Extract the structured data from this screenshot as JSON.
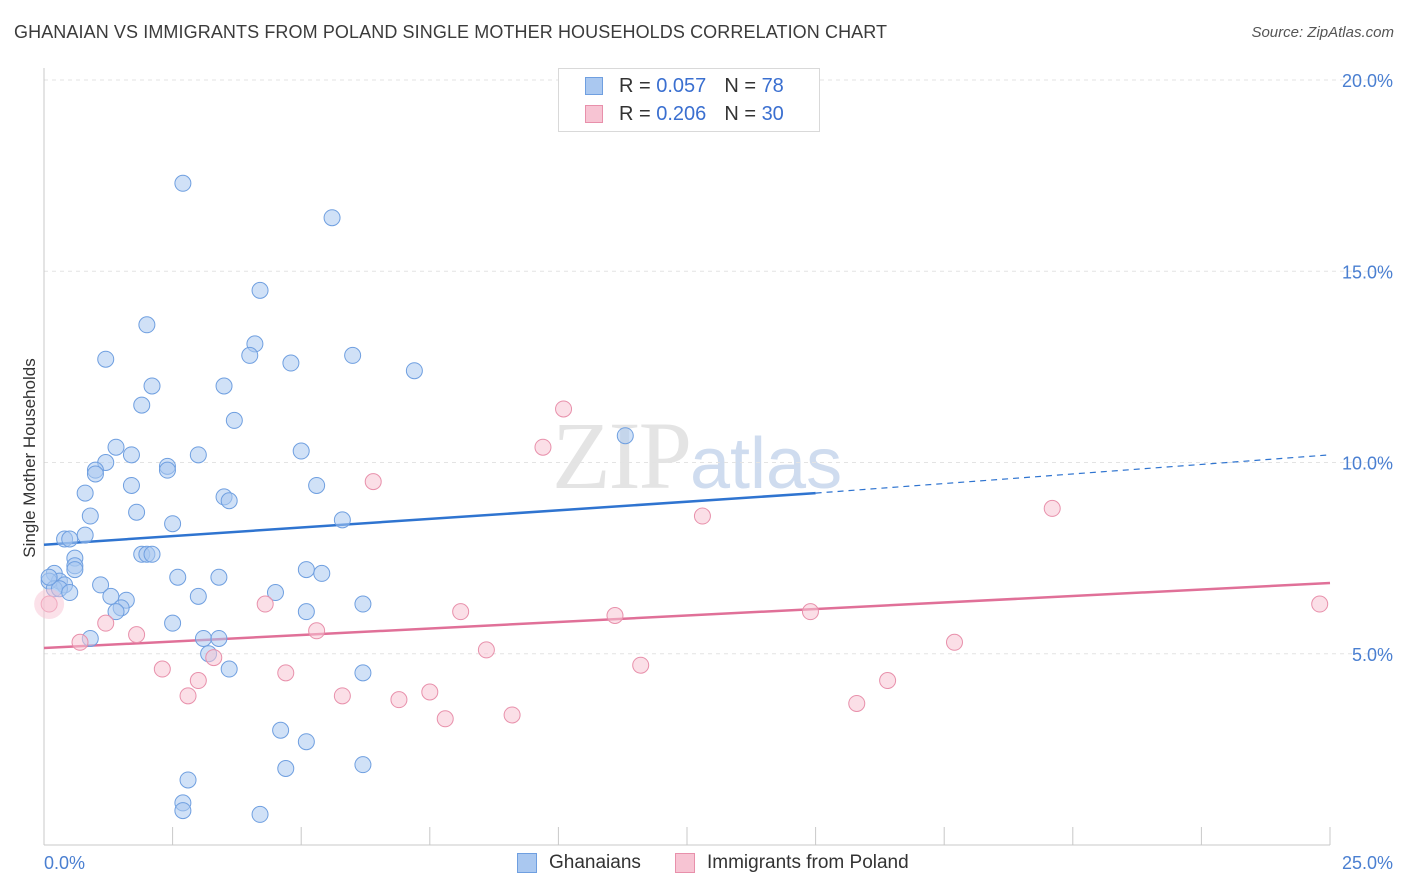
{
  "header": {
    "title": "GHANAIAN VS IMMIGRANTS FROM POLAND SINGLE MOTHER HOUSEHOLDS CORRELATION CHART",
    "source": "Source: ZipAtlas.com"
  },
  "watermark": {
    "zip": "ZIP",
    "atlas": "atlas"
  },
  "legend": {
    "rows": [
      {
        "r_label": "R = ",
        "r_value": "0.057",
        "n_label": "N = ",
        "n_value": "78",
        "color": "#aac8f0",
        "border": "#6f9fe0"
      },
      {
        "r_label": "R = ",
        "r_value": "0.206",
        "n_label": "N = ",
        "n_value": "30",
        "color": "#f7c4d3",
        "border": "#e890ab"
      }
    ]
  },
  "bottom_legend": {
    "ghanaians": "Ghanaians",
    "poland": "Immigrants from Poland"
  },
  "chart_data": {
    "type": "scatter",
    "title": "GHANAIAN VS IMMIGRANTS FROM POLAND SINGLE MOTHER HOUSEHOLDS CORRELATION CHART",
    "ylabel": "Single Mother Households",
    "xlim": [
      0,
      25
    ],
    "ylim": [
      0,
      20
    ],
    "x_tick_labels": [
      "0.0%",
      "25.0%"
    ],
    "y_ticks": [
      5,
      10,
      15,
      20
    ],
    "y_tick_labels": [
      "5.0%",
      "10.0%",
      "15.0%",
      "20.0%"
    ],
    "grid": true,
    "legend_position": "top-center",
    "series": [
      {
        "name": "Ghanaians",
        "color": "#6f9fe0",
        "fill": "#aac8f0",
        "trend": {
          "x0": 0.0,
          "y0": 7.85,
          "x1": 15.0,
          "y1": 9.2,
          "dash_x1": 25.0,
          "dash_y1": 10.2
        },
        "points": [
          [
            2.7,
            17.3
          ],
          [
            5.6,
            16.4
          ],
          [
            4.2,
            14.5
          ],
          [
            2.0,
            13.6
          ],
          [
            4.1,
            13.1
          ],
          [
            1.2,
            12.7
          ],
          [
            4.0,
            12.8
          ],
          [
            4.8,
            12.6
          ],
          [
            6.0,
            12.8
          ],
          [
            7.2,
            12.4
          ],
          [
            2.1,
            12.0
          ],
          [
            3.5,
            12.0
          ],
          [
            1.9,
            11.5
          ],
          [
            3.7,
            11.1
          ],
          [
            11.3,
            10.7
          ],
          [
            1.4,
            10.4
          ],
          [
            5.0,
            10.3
          ],
          [
            1.2,
            10.0
          ],
          [
            1.7,
            10.2
          ],
          [
            3.0,
            10.2
          ],
          [
            2.4,
            9.9
          ],
          [
            2.4,
            9.8
          ],
          [
            1.0,
            9.8
          ],
          [
            1.0,
            9.7
          ],
          [
            1.7,
            9.4
          ],
          [
            5.3,
            9.4
          ],
          [
            0.8,
            9.2
          ],
          [
            3.5,
            9.1
          ],
          [
            3.6,
            9.0
          ],
          [
            1.8,
            8.7
          ],
          [
            0.9,
            8.6
          ],
          [
            5.8,
            8.5
          ],
          [
            2.5,
            8.4
          ],
          [
            0.8,
            8.1
          ],
          [
            0.4,
            8.0
          ],
          [
            0.5,
            8.0
          ],
          [
            1.9,
            7.6
          ],
          [
            2.0,
            7.6
          ],
          [
            2.1,
            7.6
          ],
          [
            0.6,
            7.5
          ],
          [
            0.6,
            7.3
          ],
          [
            0.6,
            7.2
          ],
          [
            0.2,
            7.1
          ],
          [
            5.1,
            7.2
          ],
          [
            5.4,
            7.1
          ],
          [
            2.6,
            7.0
          ],
          [
            3.4,
            7.0
          ],
          [
            0.3,
            6.9
          ],
          [
            0.1,
            6.9
          ],
          [
            0.4,
            6.8
          ],
          [
            1.1,
            6.8
          ],
          [
            0.2,
            6.7
          ],
          [
            0.3,
            6.7
          ],
          [
            4.5,
            6.6
          ],
          [
            0.5,
            6.6
          ],
          [
            1.3,
            6.5
          ],
          [
            1.6,
            6.4
          ],
          [
            3.0,
            6.5
          ],
          [
            6.2,
            6.3
          ],
          [
            1.5,
            6.2
          ],
          [
            1.4,
            6.1
          ],
          [
            5.1,
            6.1
          ],
          [
            2.5,
            5.8
          ],
          [
            0.9,
            5.4
          ],
          [
            3.1,
            5.4
          ],
          [
            3.4,
            5.4
          ],
          [
            3.2,
            5.0
          ],
          [
            3.6,
            4.6
          ],
          [
            6.2,
            4.5
          ],
          [
            4.6,
            3.0
          ],
          [
            5.1,
            2.7
          ],
          [
            6.2,
            2.1
          ],
          [
            4.7,
            2.0
          ],
          [
            2.8,
            1.7
          ],
          [
            2.7,
            1.1
          ],
          [
            2.7,
            0.9
          ],
          [
            4.2,
            0.8
          ],
          [
            0.1,
            7.0
          ]
        ]
      },
      {
        "name": "Immigrants from Poland",
        "color": "#e890ab",
        "fill": "#f7c4d3",
        "trend": {
          "x0": 0.0,
          "y0": 5.15,
          "x1": 25.0,
          "y1": 6.85
        },
        "points": [
          [
            10.1,
            11.4
          ],
          [
            9.7,
            10.4
          ],
          [
            6.4,
            9.5
          ],
          [
            19.6,
            8.8
          ],
          [
            12.8,
            8.6
          ],
          [
            0.1,
            6.3
          ],
          [
            4.3,
            6.3
          ],
          [
            24.8,
            6.3
          ],
          [
            8.1,
            6.1
          ],
          [
            11.1,
            6.0
          ],
          [
            14.9,
            6.1
          ],
          [
            1.2,
            5.8
          ],
          [
            5.3,
            5.6
          ],
          [
            1.8,
            5.5
          ],
          [
            0.7,
            5.3
          ],
          [
            17.7,
            5.3
          ],
          [
            8.6,
            5.1
          ],
          [
            3.3,
            4.9
          ],
          [
            11.6,
            4.7
          ],
          [
            2.3,
            4.6
          ],
          [
            4.7,
            4.5
          ],
          [
            3.0,
            4.3
          ],
          [
            16.4,
            4.3
          ],
          [
            2.8,
            3.9
          ],
          [
            5.8,
            3.9
          ],
          [
            7.5,
            4.0
          ],
          [
            6.9,
            3.8
          ],
          [
            15.8,
            3.7
          ],
          [
            7.8,
            3.3
          ],
          [
            9.1,
            3.4
          ]
        ]
      }
    ]
  }
}
